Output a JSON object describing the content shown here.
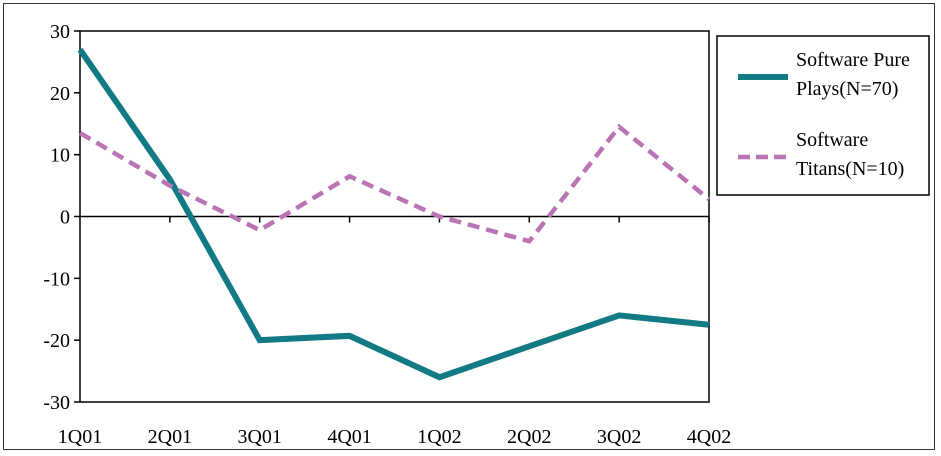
{
  "chart_data": {
    "type": "line",
    "categories": [
      "1Q01",
      "2Q01",
      "3Q01",
      "4Q01",
      "1Q02",
      "2Q02",
      "3Q02",
      "4Q02"
    ],
    "ylim": [
      -30,
      30
    ],
    "yticks": [
      "30",
      "20",
      "10",
      "0",
      "-10",
      "-20",
      "-30"
    ],
    "grid": false,
    "legend_position": "right",
    "series": [
      {
        "name_lines": [
          "Software  Pure",
          "Plays(N=70)"
        ],
        "values": [
          27,
          6,
          -20,
          -19.3,
          -26,
          -21,
          -16,
          -17.5
        ],
        "color": "#127a85",
        "style": "solid"
      },
      {
        "name_lines": [
          "Software",
          "Titans(N=10)"
        ],
        "values": [
          13.5,
          5,
          -2.2,
          6.5,
          0,
          -4,
          14.5,
          2.8
        ],
        "color": "#b874b3",
        "style": "dashed"
      }
    ]
  }
}
